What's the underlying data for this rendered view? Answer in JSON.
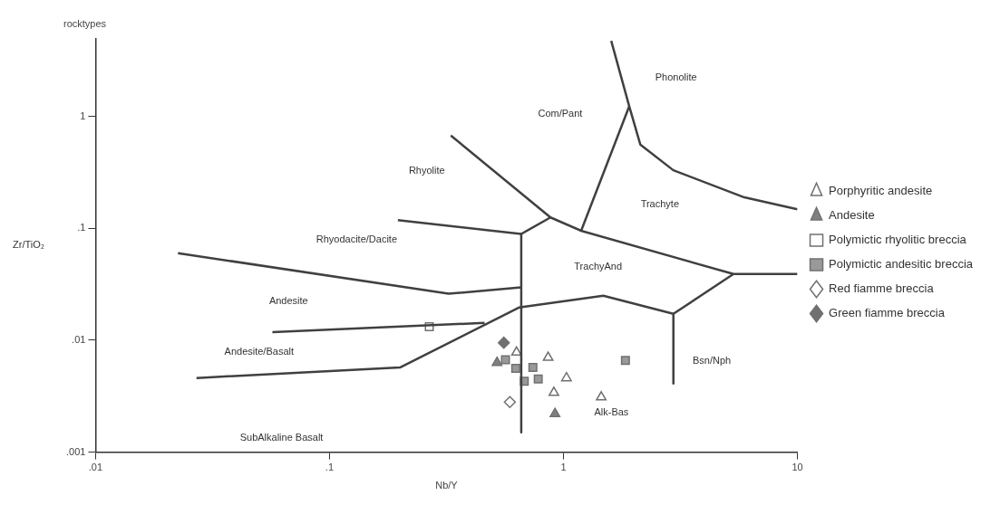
{
  "chart_data": {
    "type": "scatter",
    "title": "rocktypes",
    "xlabel": "Nb/Y",
    "ylabel": "Zr/TiO₂",
    "log": "xy",
    "xlim": [
      0.01,
      10
    ],
    "ylim": [
      0.001,
      4.9
    ],
    "xticks": [
      {
        "value": 0.01,
        "label": ".01"
      },
      {
        "value": 0.1,
        "label": ".1"
      },
      1,
      10
    ],
    "yticks": [
      {
        "value": 0.001,
        "label": ".001"
      },
      {
        "value": 0.01,
        "label": ".01"
      },
      {
        "value": 0.1,
        "label": ".1"
      },
      1
    ],
    "grid": false,
    "legend": "right",
    "series": [
      {
        "type": "line",
        "color": "#404040",
        "marker": "none",
        "x": [
          0.0225,
          0.323,
          0.66
        ],
        "values": [
          0.06,
          0.026,
          0.0297
        ]
      },
      {
        "type": "line",
        "color": "#404040",
        "marker": "none",
        "x": [
          0.057,
          0.46
        ],
        "values": [
          0.0118,
          0.0143
        ]
      },
      {
        "type": "line",
        "color": "#404040",
        "marker": "none",
        "x": [
          0.027,
          0.2,
          0.645,
          1.48,
          2.95,
          2.95
        ],
        "values": [
          0.0046,
          0.0057,
          0.0196,
          0.025,
          0.0172,
          0.0041
        ]
      },
      {
        "type": "line",
        "color": "#404040",
        "marker": "none",
        "x": [
          0.66,
          0.66
        ],
        "values": [
          0.089,
          0.0015
        ]
      },
      {
        "type": "line",
        "color": "#404040",
        "marker": "none",
        "x": [
          0.196,
          0.66,
          0.88
        ],
        "values": [
          0.118,
          0.089,
          0.125
        ]
      },
      {
        "type": "line",
        "color": "#404040",
        "marker": "none",
        "x": [
          0.33,
          0.88,
          1.19,
          5.33,
          10
        ],
        "values": [
          0.675,
          0.125,
          0.095,
          0.039,
          0.039
        ]
      },
      {
        "type": "line",
        "color": "#404040",
        "marker": "none",
        "x": [
          1.19,
          1.91
        ],
        "values": [
          0.095,
          1.23
        ]
      },
      {
        "type": "line",
        "color": "#404040",
        "marker": "none",
        "x": [
          1.6,
          1.91,
          2.13,
          2.95,
          5.93,
          10
        ],
        "values": [
          4.73,
          1.23,
          0.56,
          0.33,
          0.189,
          0.148
        ]
      },
      {
        "type": "line",
        "color": "#404040",
        "marker": "none",
        "x": [
          5.33,
          2.95
        ],
        "values": [
          0.039,
          0.0172
        ]
      },
      {
        "name": "Porphyritic andesite",
        "color": "#ffffff",
        "marker": "triangle",
        "x": [
          0.63,
          0.86,
          1.03,
          0.91,
          1.45
        ],
        "values": [
          0.0078,
          0.007,
          0.0046,
          0.0034,
          0.0031
        ]
      },
      {
        "name": "Andesite",
        "color": "#808080",
        "marker": "triangle",
        "x": [
          0.92,
          0.52
        ],
        "values": [
          0.0022,
          0.0063
        ]
      },
      {
        "name": "Polymictic rhyolitic breccia",
        "color": "#ffffff",
        "marker": "square",
        "x": [
          0.267
        ],
        "values": [
          0.0132
        ]
      },
      {
        "name": "Polymictic andesitic breccia",
        "color": "#999999",
        "marker": "square",
        "x": [
          0.565,
          0.74,
          0.78,
          0.68,
          1.84,
          0.625
        ],
        "values": [
          0.0067,
          0.0057,
          0.0045,
          0.0043,
          0.0066,
          0.0056
        ]
      },
      {
        "name": "Red fiamme breccia",
        "color": "#ffffff",
        "marker": "diamond",
        "x": [
          0.59
        ],
        "values": [
          0.0028
        ]
      },
      {
        "name": "Green fiamme breccia",
        "color": "#707070",
        "marker": "diamond",
        "x": [
          0.556
        ],
        "values": [
          0.0095
        ]
      }
    ],
    "annotations": [
      "Phonolite",
      "Com/Pant",
      "Rhyolite",
      "Trachyte",
      "Rhyodacite/Dacite",
      "TrachyAnd",
      "Andesite",
      "Andesite/Basalt",
      "Bsn/Nph",
      "Alk-Bas",
      "SubAlkaline Basalt"
    ]
  }
}
